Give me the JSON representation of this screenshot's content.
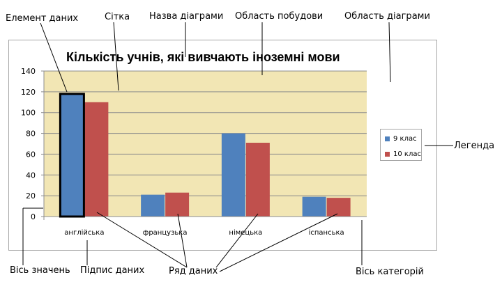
{
  "annotations": {
    "data_element": "Елемент даних",
    "grid": "Сітка",
    "chart_title_label": "Назва діаграми",
    "plot_area": "Область побудови",
    "chart_area": "Область діаграми",
    "legend": "Легенда",
    "value_axis": "Вісь значень",
    "data_label": "Підпис даних",
    "data_series": "Ряд даних",
    "category_axis": "Вісь категорій"
  },
  "colors": {
    "series1": "#4f81bd",
    "series2": "#c0504d",
    "plot_bg": "#f2e6b4",
    "grid": "#8c8c8c"
  },
  "chart_data": {
    "type": "bar",
    "title": "Кількість учнів, які вивчають іноземні мови",
    "categories": [
      "англійська",
      "французька",
      "німецька",
      "іспанська"
    ],
    "series": [
      {
        "name": "9 клас",
        "values": [
          118,
          21,
          80,
          19
        ]
      },
      {
        "name": "10 клас",
        "values": [
          110,
          23,
          71,
          18
        ]
      }
    ],
    "ylim": [
      0,
      140
    ],
    "yticks": [
      "0",
      "20",
      "40",
      "60",
      "80",
      "100",
      "120",
      "140"
    ],
    "grid": true,
    "legend": "right"
  }
}
